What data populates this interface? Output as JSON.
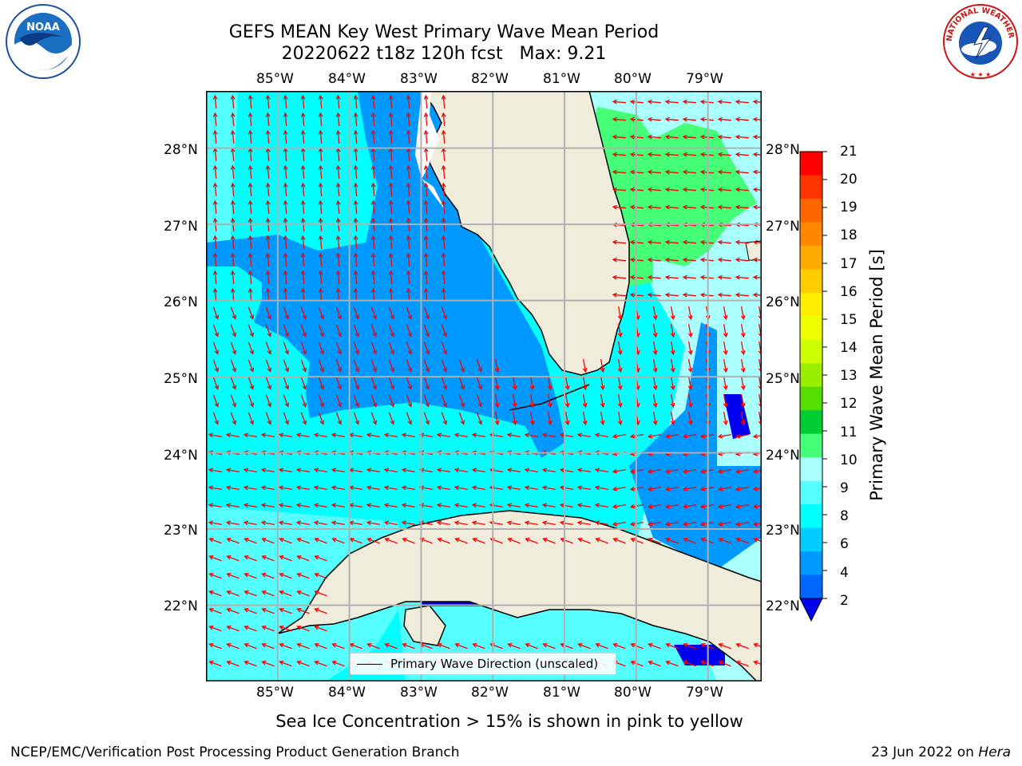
{
  "title": {
    "line1": "GEFS MEAN Key West Primary Wave Mean Period",
    "line2": "20220622 t18z 120h fcst   Max: 9.21"
  },
  "axes": {
    "lon_labels": [
      "85°W",
      "84°W",
      "83°W",
      "82°W",
      "81°W",
      "80°W",
      "79°W"
    ],
    "lat_labels": [
      "28°N",
      "27°N",
      "26°N",
      "25°N",
      "24°N",
      "23°N",
      "22°N"
    ]
  },
  "colorbar": {
    "label": "Primary Wave Mean Period [s]",
    "ticks": [
      "21",
      "20",
      "19",
      "18",
      "17",
      "16",
      "15",
      "14",
      "13",
      "12",
      "11",
      "10",
      "9",
      "8",
      "6",
      "4",
      "2"
    ],
    "colors": [
      "#ff0000",
      "#ff3300",
      "#ff6600",
      "#ff8800",
      "#ffaa00",
      "#ffcc00",
      "#ffee00",
      "#eeff00",
      "#ccff00",
      "#99ee00",
      "#55dd00",
      "#00cc33",
      "#44ff77",
      "#aaffff",
      "#55ffff",
      "#00ffff",
      "#00ccff",
      "#0099ff",
      "#0066ff"
    ],
    "extend_color": "#0000ee"
  },
  "legend": {
    "label": "Primary Wave Direction (unscaled)"
  },
  "note": "Sea Ice Concentration > 15% is shown in pink to yellow",
  "footer": {
    "left": "NCEP/EMC/Verification Post Processing Product Generation Branch",
    "date": "23 Jun 2022 on ",
    "machine": "Hera"
  },
  "logos": {
    "noaa": "NOAA",
    "nws": "NATIONAL WEATHER SERVICE"
  },
  "palette": {
    "land": "#efecdc",
    "sea_light": "#aaffff",
    "sea_cyan": "#00ffff",
    "sea_blue": "#0099ff",
    "sea_dark": "#0000ee",
    "sea_green": "#44ff77",
    "arrow": "#ff0000",
    "grid": "#b0b0b0"
  },
  "map": {
    "lon_range": [
      -86.0,
      -78.25
    ],
    "lat_range": [
      21.0,
      28.75
    ]
  }
}
